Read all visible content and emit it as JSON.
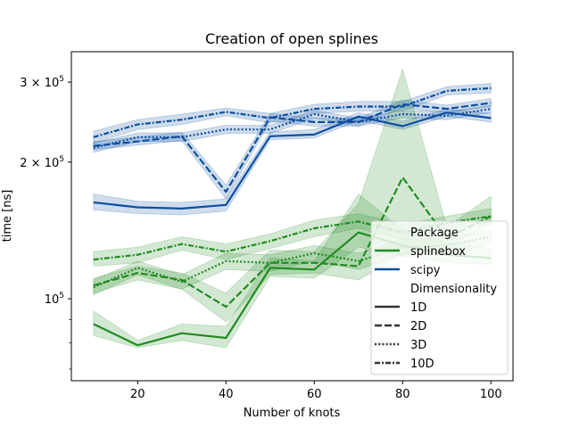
{
  "chart_data": {
    "type": "line",
    "title": "Creation of open splines",
    "xlabel": "Number of knots",
    "ylabel": "time [ns]",
    "y_scale": "log",
    "xlim": [
      5,
      105
    ],
    "ylim": [
      66000,
      350000
    ],
    "x": [
      10,
      20,
      30,
      40,
      50,
      60,
      70,
      80,
      90,
      100
    ],
    "x_ticks": [
      20,
      40,
      60,
      80,
      100
    ],
    "y_ticks": [
      {
        "value": 100000,
        "base": "10",
        "exp": "5"
      },
      {
        "value": 200000,
        "base": "2 × 10",
        "exp": "5"
      },
      {
        "value": 300000,
        "base": "3 × 10",
        "exp": "5"
      }
    ],
    "grid": false,
    "legend_position": "lower-right",
    "legend": {
      "hue_title": "Package",
      "style_title": "Dimensionality",
      "packages": [
        {
          "label": "splinebox",
          "color": "#228B22"
        },
        {
          "label": "scipy",
          "color": "#0D4FA0"
        }
      ],
      "styles": [
        {
          "label": "1D",
          "dash": "solid"
        },
        {
          "label": "2D",
          "dash": "dashed"
        },
        {
          "label": "3D",
          "dash": "dotted"
        },
        {
          "label": "10D",
          "dash": "dashdot"
        }
      ]
    },
    "series": [
      {
        "package": "scipy",
        "dim": "1D",
        "values": [
          163000,
          159000,
          158000,
          161000,
          228000,
          230000,
          252000,
          240000,
          257000,
          250000
        ],
        "lower": [
          157000,
          154000,
          153000,
          156000,
          224000,
          226000,
          247000,
          236000,
          252000,
          245000
        ],
        "upper": [
          170000,
          164000,
          163000,
          166000,
          233000,
          236000,
          257000,
          246000,
          262000,
          256000
        ]
      },
      {
        "package": "scipy",
        "dim": "2D",
        "values": [
          217000,
          222000,
          228000,
          172000,
          251000,
          245000,
          245000,
          268000,
          262000,
          270000
        ],
        "lower": [
          213000,
          218000,
          223000,
          166000,
          246000,
          240000,
          240000,
          263000,
          257000,
          265000
        ],
        "upper": [
          222000,
          227000,
          233000,
          178000,
          256000,
          250000,
          250000,
          274000,
          267000,
          276000
        ]
      },
      {
        "package": "scipy",
        "dim": "3D",
        "values": [
          215000,
          227000,
          227000,
          236000,
          236000,
          255000,
          245000,
          255000,
          253000,
          262000
        ],
        "lower": [
          210000,
          222000,
          222000,
          231000,
          231000,
          250000,
          240000,
          250000,
          248000,
          257000
        ],
        "upper": [
          220000,
          232000,
          232000,
          241000,
          241000,
          260000,
          250000,
          260000,
          258000,
          267000
        ]
      },
      {
        "package": "scipy",
        "dim": "10D",
        "values": [
          227000,
          242000,
          248000,
          258000,
          250000,
          262000,
          265000,
          265000,
          287000,
          291000
        ],
        "lower": [
          220000,
          236000,
          242000,
          253000,
          244000,
          256000,
          259000,
          259000,
          281000,
          284000
        ],
        "upper": [
          234000,
          248000,
          255000,
          263000,
          256000,
          268000,
          272000,
          272000,
          293000,
          298000
        ]
      },
      {
        "package": "splinebox",
        "dim": "1D",
        "values": [
          88000,
          79000,
          84000,
          82000,
          117000,
          116000,
          140000,
          131000,
          125000,
          123000
        ],
        "lower": [
          83000,
          78000,
          81000,
          78000,
          112000,
          111000,
          130000,
          124000,
          120000,
          119000
        ],
        "upper": [
          94000,
          81000,
          88000,
          87000,
          123000,
          121000,
          170000,
          142000,
          133000,
          129000
        ]
      },
      {
        "package": "splinebox",
        "dim": "2D",
        "values": [
          107000,
          114000,
          110000,
          96000,
          120000,
          120000,
          118000,
          185000,
          136000,
          152000
        ],
        "lower": [
          103000,
          110000,
          105000,
          89000,
          113000,
          114000,
          110000,
          125000,
          130000,
          146000
        ],
        "upper": [
          111000,
          118000,
          114000,
          103000,
          128000,
          127000,
          162000,
          320000,
          144000,
          168000
        ]
      },
      {
        "package": "splinebox",
        "dim": "3D",
        "values": [
          106000,
          117000,
          109000,
          121000,
          120000,
          126000,
          121000,
          130000,
          131000,
          137000
        ],
        "lower": [
          102000,
          113000,
          105000,
          116000,
          115000,
          121000,
          116000,
          125000,
          126000,
          132000
        ],
        "upper": [
          110000,
          121000,
          113000,
          126000,
          125000,
          131000,
          126000,
          135000,
          136000,
          142000
        ]
      },
      {
        "package": "splinebox",
        "dim": "10D",
        "values": [
          122000,
          125000,
          132000,
          127000,
          134000,
          143000,
          148000,
          140000,
          147000,
          152000
        ],
        "lower": [
          118000,
          120000,
          128000,
          122000,
          129000,
          137000,
          143000,
          135000,
          142000,
          147000
        ],
        "upper": [
          127000,
          130000,
          137000,
          132000,
          139000,
          149000,
          154000,
          146000,
          152000,
          158000
        ]
      }
    ]
  }
}
